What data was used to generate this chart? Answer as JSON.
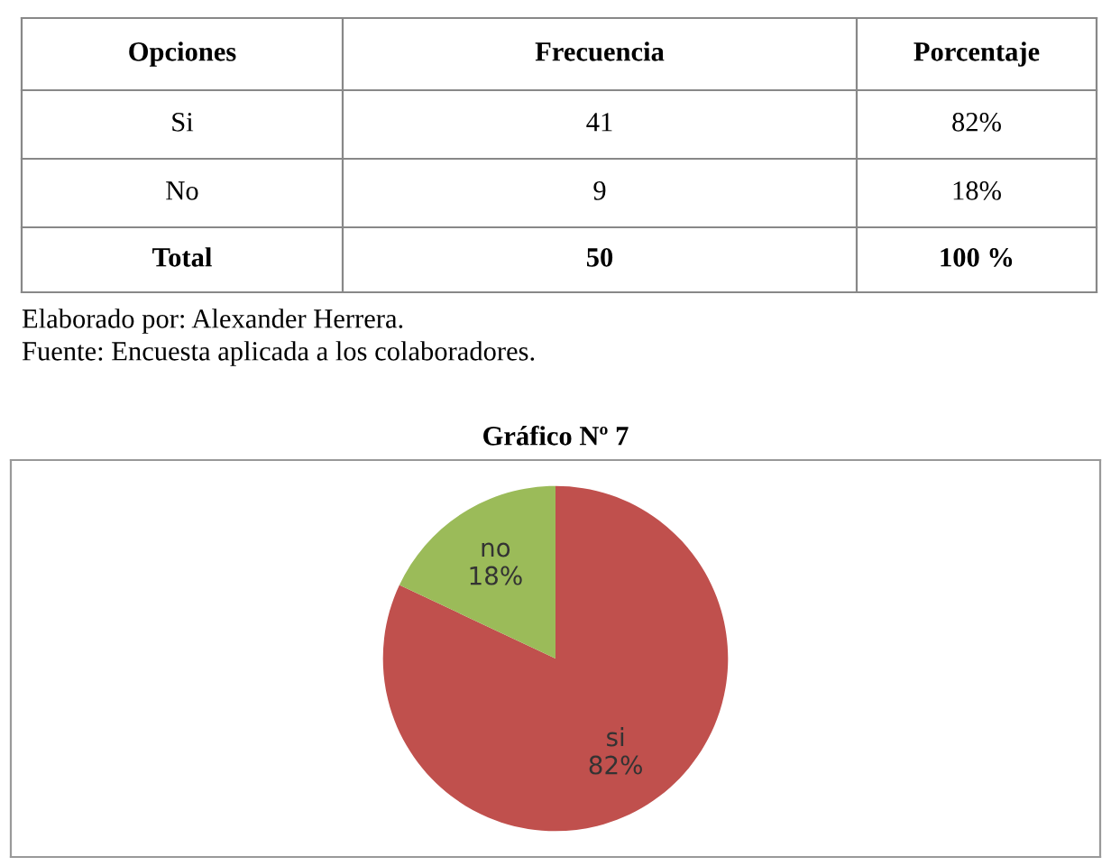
{
  "chart_data": [
    {
      "type": "other",
      "annotations": [
        "Opciones",
        "Frecuencia",
        "Porcentaje",
        "Si",
        "41",
        "82%",
        "No",
        "9",
        "18%",
        "Total",
        "50",
        "100 %",
        "Elaborado por: Alexander Herrera.",
        "Fuente: Encuesta aplicada a los colaboradores."
      ]
    },
    {
      "type": "pie",
      "title": "Gráfico Nº 7",
      "categories": [
        "si",
        "no"
      ],
      "values": [
        82,
        18
      ],
      "colors": [
        "#c0504d",
        "#9bbb59"
      ],
      "value_labels": [
        "82%",
        "18%"
      ]
    }
  ]
}
